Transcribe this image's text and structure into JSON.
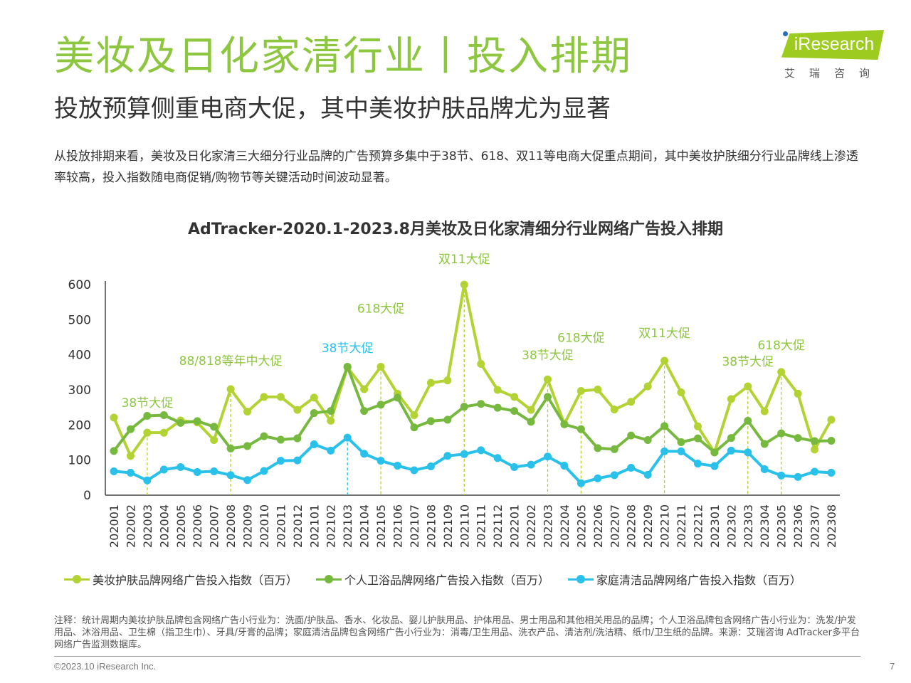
{
  "page": {
    "title": "美妆及日化家清行业丨投入排期",
    "subtitle": "投放预算侧重电商大促，其中美妆护肤品牌尤为显著",
    "intro": "从投放排期来看，美妆及日化家清三大细分行业品牌的广告预算多集中于38节、618、双11等电商大促重点期间，其中美妆护肤细分行业品牌线上渗透率较高，投入指数随电商促销/购物节等关键活动时间波动显著。",
    "footnote": "注释：统计周期内美妆护肤品牌包含网络广告小行业为：洗面/护肤品、香水、化妆品、婴儿护肤用品、护体用品、男士用品和其他相关用品的品牌；个人卫浴品牌包含网络广告小行业为：洗发/护发用品、沐浴用品、卫生棉（指卫生巾）、牙具/牙膏的品牌；家庭清洁品牌包含网络广告小行业为：消毒/卫生用品、洗衣产品、清洁剂/洗洁精、纸巾/卫生纸的品牌。来源：艾瑞咨询 AdTracker多平台网络广告监测数据库。",
    "copyright": "©2023.10 iResearch Inc.",
    "page_number": "7"
  },
  "logo": {
    "text": "iResearch",
    "subtext": "艾瑞咨询",
    "color": "#9DCB1F"
  },
  "chart_data": {
    "type": "line",
    "title": "AdTracker-2020.1-2023.8月美妆及日化家清细分行业网络广告投入排期",
    "ylim": [
      0,
      600
    ],
    "yticks": [
      0,
      100,
      200,
      300,
      400,
      500,
      600
    ],
    "grid": false,
    "legend_position": "bottom",
    "categories": [
      "202001",
      "202002",
      "202003",
      "202004",
      "202005",
      "202006",
      "202007",
      "202008",
      "202009",
      "202010",
      "202011",
      "202012",
      "202101",
      "202102",
      "202103",
      "202104",
      "202105",
      "202106",
      "202107",
      "202108",
      "202109",
      "202110",
      "202111",
      "202112",
      "202201",
      "202202",
      "202203",
      "202204",
      "202205",
      "202206",
      "202207",
      "202208",
      "202209",
      "202210",
      "202211",
      "202212",
      "202301",
      "202302",
      "202303",
      "202304",
      "202305",
      "202306",
      "202307",
      "202308"
    ],
    "series": [
      {
        "name": "美妆护肤品牌网络广告投入指数（百万）",
        "color": "#B3D334",
        "values": [
          221,
          112,
          178,
          178,
          213,
          207,
          157,
          302,
          238,
          280,
          280,
          243,
          278,
          212,
          364,
          302,
          366,
          289,
          228,
          320,
          327,
          600,
          374,
          300,
          280,
          243,
          330,
          203,
          297,
          301,
          244,
          266,
          310,
          383,
          293,
          196,
          122,
          274,
          310,
          239,
          351,
          289,
          130,
          215
        ]
      },
      {
        "name": "个人卫浴品牌网络广告投入指数（百万）",
        "color": "#77B83E",
        "values": [
          126,
          188,
          226,
          228,
          206,
          211,
          195,
          133,
          140,
          168,
          158,
          162,
          234,
          240,
          366,
          240,
          258,
          278,
          193,
          211,
          215,
          252,
          260,
          249,
          240,
          209,
          280,
          202,
          188,
          134,
          131,
          170,
          157,
          197,
          151,
          162,
          122,
          163,
          212,
          146,
          176,
          163,
          154,
          155
        ]
      },
      {
        "name": "家庭清洁品牌网络广告投入指数（百万）",
        "color": "#29C0EA",
        "values": [
          68,
          64,
          42,
          73,
          80,
          66,
          68,
          57,
          43,
          69,
          98,
          99,
          145,
          127,
          164,
          118,
          98,
          84,
          71,
          82,
          112,
          117,
          128,
          106,
          80,
          87,
          110,
          84,
          34,
          48,
          57,
          78,
          58,
          125,
          125,
          90,
          83,
          127,
          122,
          74,
          56,
          52,
          67,
          64
        ]
      }
    ],
    "annotations": [
      {
        "text": "38节大促",
        "at": "202003",
        "series": 0,
        "color": "#8DC63F",
        "lead": true
      },
      {
        "text": "88/818等年中大促",
        "at": "202008",
        "series": 0,
        "color": "#8DC63F",
        "lead": true
      },
      {
        "text": "38节大促",
        "at": "202103",
        "series": 2,
        "color": "#29C0EA",
        "lead": true
      },
      {
        "text": "618大促",
        "at": "202105",
        "series": 0,
        "color": "#8DC63F",
        "lead": true
      },
      {
        "text": "双11大促",
        "at": "202110",
        "series": 0,
        "color": "#8DC63F",
        "lead": true
      },
      {
        "text": "38节大促",
        "at": "202203",
        "series": 0,
        "color": "#8DC63F",
        "lead": true
      },
      {
        "text": "618大促",
        "at": "202205",
        "series": 0,
        "color": "#8DC63F",
        "lead": true
      },
      {
        "text": "双11大促",
        "at": "202210",
        "series": 0,
        "color": "#8DC63F",
        "lead": true
      },
      {
        "text": "38节大促",
        "at": "202303",
        "series": 0,
        "color": "#8DC63F",
        "lead": true
      },
      {
        "text": "618大促",
        "at": "202305",
        "series": 0,
        "color": "#8DC63F",
        "lead": true
      }
    ]
  }
}
